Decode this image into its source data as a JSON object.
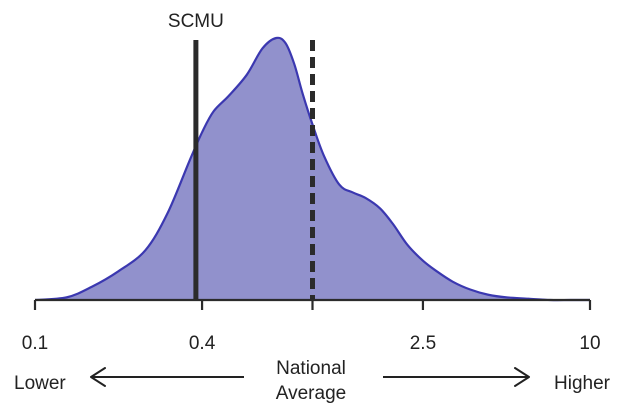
{
  "chart_data": {
    "type": "area",
    "xscale": "log",
    "xlim": [
      0.1,
      10
    ],
    "ylim": [
      0,
      1
    ],
    "grid": false,
    "legend": "none",
    "xticks": [
      {
        "value": 0.1,
        "label": "0.1"
      },
      {
        "value": 0.4,
        "label": "0.4"
      },
      {
        "value": 1.0,
        "label": ""
      },
      {
        "value": 2.5,
        "label": "2.5"
      },
      {
        "value": 10,
        "label": "10"
      }
    ],
    "series": [
      {
        "color": "#9191cc",
        "stroke": "#3b38b0",
        "x": [
          0.1,
          0.13,
          0.16,
          0.2,
          0.25,
          0.3,
          0.36,
          0.4,
          0.44,
          0.5,
          0.58,
          0.66,
          0.74,
          0.8,
          0.86,
          0.92,
          1.0,
          1.1,
          1.25,
          1.4,
          1.55,
          1.75,
          1.95,
          2.2,
          2.5,
          2.8,
          3.2,
          3.7,
          4.3,
          5.0,
          6.0,
          7.2,
          8.5,
          10.0
        ],
        "y": [
          0.0,
          0.01,
          0.05,
          0.11,
          0.19,
          0.33,
          0.53,
          0.64,
          0.72,
          0.78,
          0.86,
          0.96,
          1.0,
          0.98,
          0.9,
          0.79,
          0.67,
          0.55,
          0.44,
          0.41,
          0.39,
          0.35,
          0.29,
          0.21,
          0.15,
          0.11,
          0.07,
          0.04,
          0.02,
          0.01,
          0.005,
          0.0,
          0.0,
          0.0
        ]
      }
    ],
    "markers": [
      {
        "label": "SCMU",
        "x": 0.38,
        "style": "solid"
      },
      {
        "label": "",
        "x": 1.0,
        "style": "dashed"
      }
    ],
    "annotations": {
      "left": "Lower",
      "center_line1": "National",
      "center_line2": "Average",
      "right": "Higher"
    }
  }
}
